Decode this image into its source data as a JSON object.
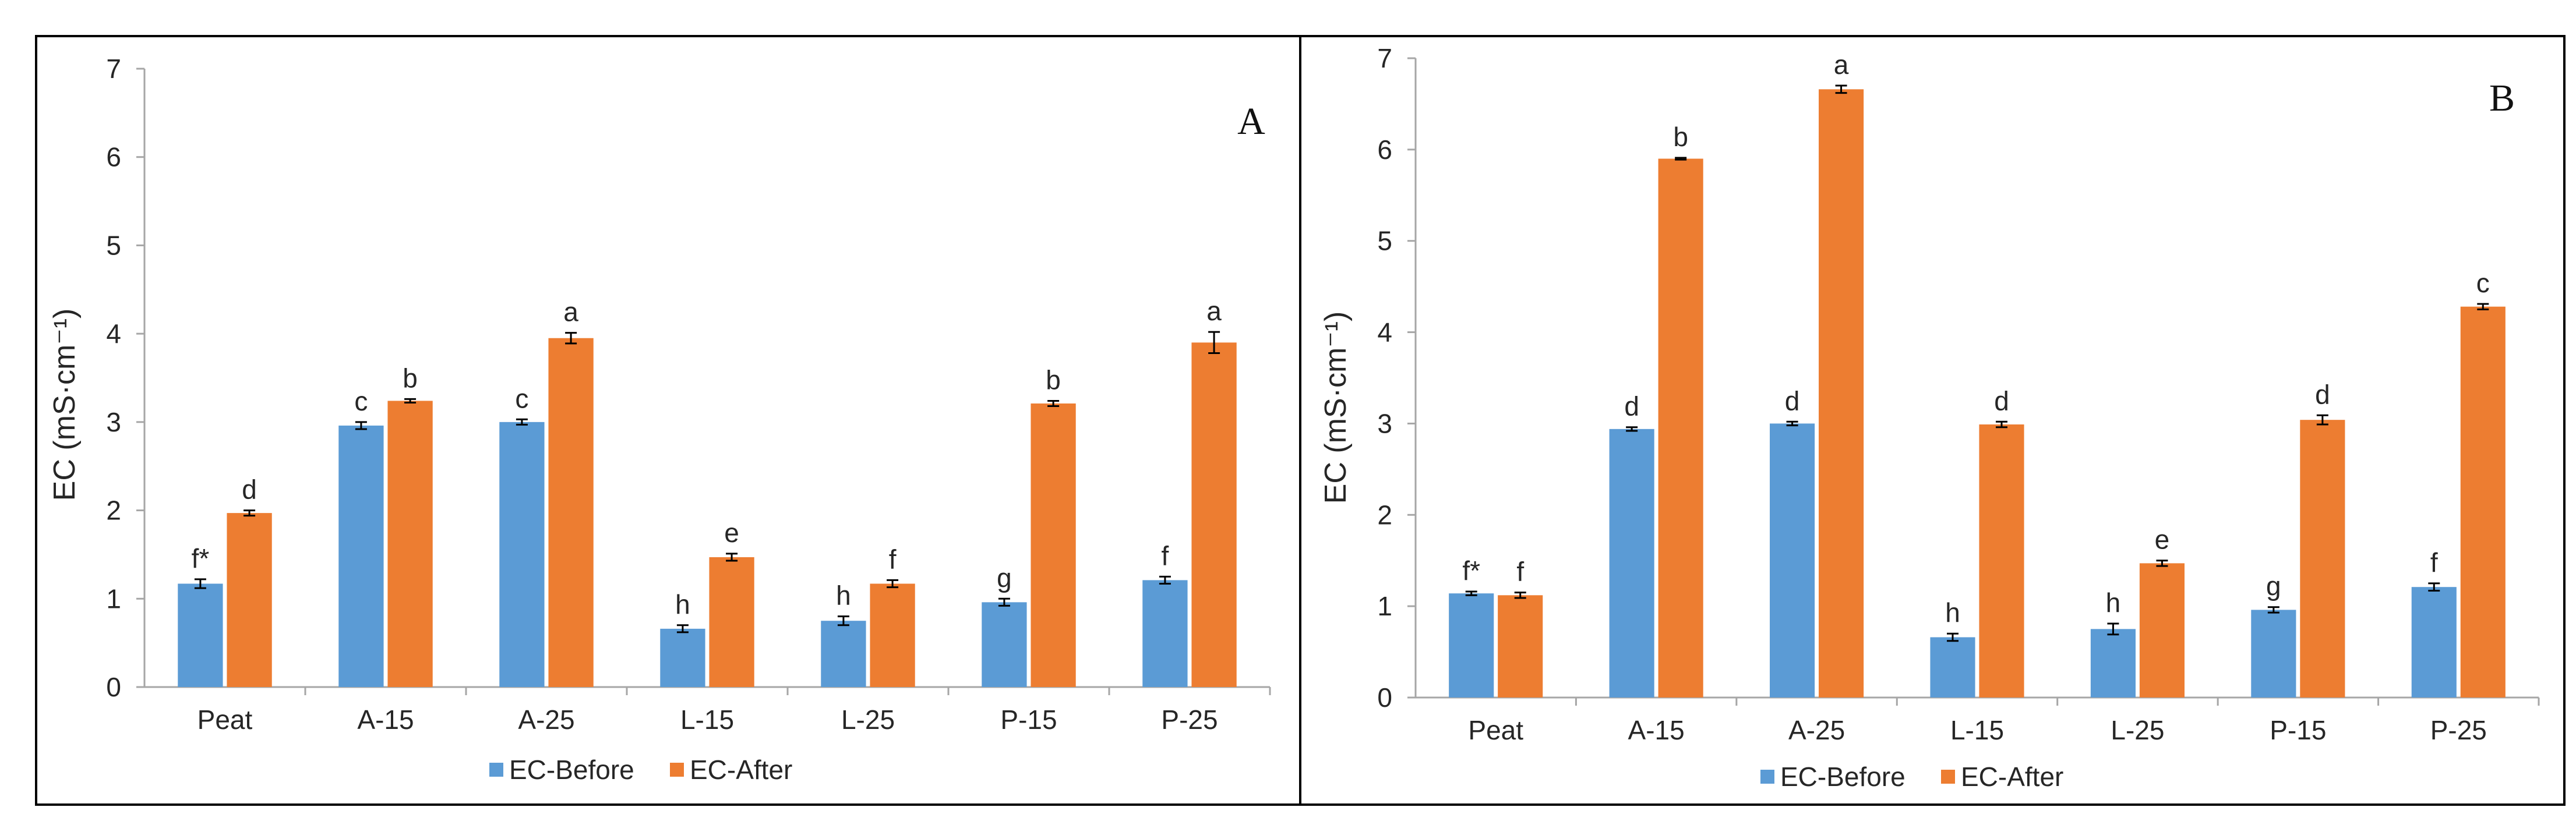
{
  "chart_data": [
    {
      "type": "bar",
      "panel_label": "A",
      "categories": [
        "Peat",
        "A-15",
        "A-25",
        "L-15",
        "L-25",
        "P-15",
        "P-25"
      ],
      "ylabel": "EC (mS·cm⁻¹)",
      "xlabel": "",
      "ylim": [
        0,
        7
      ],
      "yticks": [
        "0",
        "1",
        "2",
        "3",
        "4",
        "5",
        "6",
        "7"
      ],
      "legend_position": "bottom-center",
      "series": [
        {
          "name": "EC-Before",
          "color": "#5b9bd5",
          "values": [
            1.17,
            2.96,
            3.0,
            0.66,
            0.75,
            0.96,
            1.21
          ],
          "errors": [
            0.05,
            0.04,
            0.03,
            0.04,
            0.05,
            0.04,
            0.04
          ],
          "labels": [
            "f*",
            "c",
            "c",
            "h",
            "h",
            "g",
            "f"
          ]
        },
        {
          "name": "EC-After",
          "color": "#ed7d31",
          "values": [
            1.97,
            3.24,
            3.95,
            1.47,
            1.17,
            3.21,
            3.9
          ],
          "errors": [
            0.03,
            0.02,
            0.06,
            0.04,
            0.04,
            0.03,
            0.12
          ],
          "labels": [
            "d",
            "b",
            "a",
            "e",
            "f",
            "b",
            "a"
          ]
        }
      ]
    },
    {
      "type": "bar",
      "panel_label": "B",
      "categories": [
        "Peat",
        "A-15",
        "A-25",
        "L-15",
        "L-25",
        "P-15",
        "P-25"
      ],
      "ylabel": "EC (mS·cm⁻¹)",
      "xlabel": "",
      "ylim": [
        0,
        7
      ],
      "yticks": [
        "0",
        "1",
        "2",
        "3",
        "4",
        "5",
        "6",
        "7"
      ],
      "legend_position": "bottom-center",
      "series": [
        {
          "name": "EC-Before",
          "color": "#5b9bd5",
          "values": [
            1.14,
            2.94,
            3.0,
            0.66,
            0.75,
            0.96,
            1.21
          ],
          "errors": [
            0.02,
            0.02,
            0.02,
            0.04,
            0.06,
            0.03,
            0.04
          ],
          "labels": [
            "f*",
            "d",
            "d",
            "h",
            "h",
            "g",
            "f"
          ]
        },
        {
          "name": "EC-After",
          "color": "#ed7d31",
          "values": [
            1.12,
            5.9,
            6.66,
            2.99,
            1.47,
            3.04,
            4.28
          ],
          "errors": [
            0.03,
            0.01,
            0.04,
            0.03,
            0.03,
            0.05,
            0.03
          ],
          "labels": [
            "f",
            "b",
            "a",
            "d",
            "e",
            "d",
            "c"
          ]
        }
      ]
    }
  ]
}
